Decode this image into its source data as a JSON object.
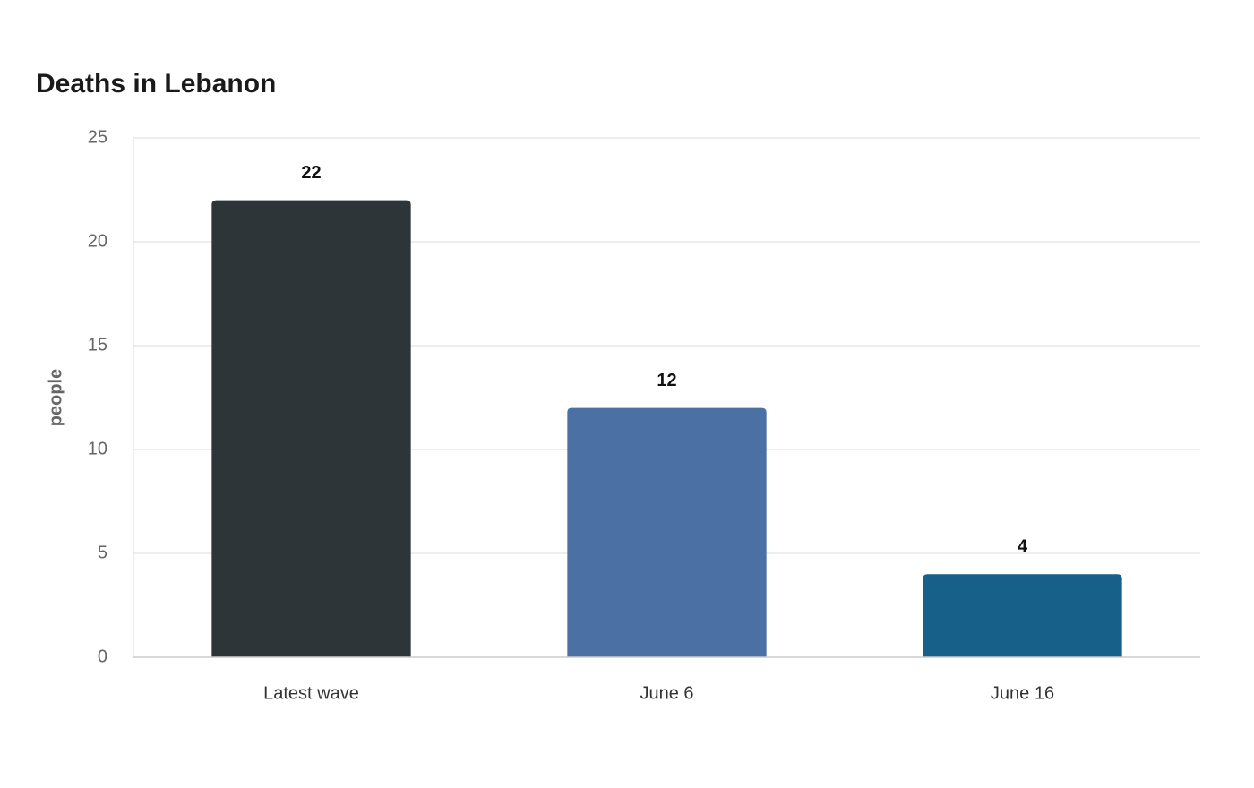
{
  "chart_data": {
    "type": "bar",
    "title": "Deaths in Lebanon",
    "xlabel": "",
    "ylabel": "people",
    "categories": [
      "Latest wave",
      "June 6",
      "June 16"
    ],
    "values": [
      22,
      12,
      4
    ],
    "data_labels": [
      "22",
      "12",
      "4"
    ],
    "colors": [
      "#2e3538",
      "#4b70a4",
      "#17608a"
    ],
    "ylim": [
      0,
      25
    ],
    "yticks": [
      0,
      5,
      10,
      15,
      20,
      25
    ],
    "ytick_labels": [
      "0",
      "5",
      "10",
      "15",
      "20",
      "25"
    ],
    "grid": "horizontal",
    "legend": "none"
  }
}
